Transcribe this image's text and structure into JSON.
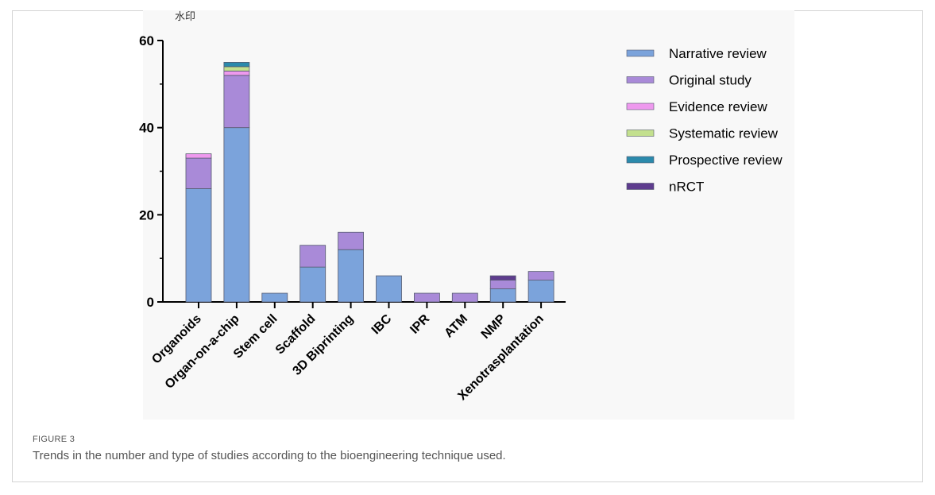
{
  "figure": {
    "label": "FIGURE 3",
    "caption": "Trends in the number and type of studies according to the bioengineering technique used.",
    "watermark": "水印"
  },
  "chart_data": {
    "type": "bar",
    "stacked": true,
    "categories": [
      "Organoids",
      "Organ-on-a-chip",
      "Stem cell",
      "Scaffold",
      "3D Biprinting",
      "IBC",
      "IPR",
      "ATM",
      "NMP",
      "Xenotrasplantation"
    ],
    "series": [
      {
        "name": "Narrative review",
        "color": "#7ba3db",
        "values": [
          26,
          40,
          2,
          8,
          12,
          6,
          0,
          0,
          3,
          5
        ]
      },
      {
        "name": "Original study",
        "color": "#a98ad8",
        "values": [
          7,
          12,
          0,
          5,
          4,
          0,
          2,
          2,
          2,
          2
        ]
      },
      {
        "name": "Evidence review",
        "color": "#ee99ee",
        "values": [
          1,
          1,
          0,
          0,
          0,
          0,
          0,
          0,
          0,
          0
        ]
      },
      {
        "name": "Systematic review",
        "color": "#c3e08e",
        "values": [
          0,
          1,
          0,
          0,
          0,
          0,
          0,
          0,
          0,
          0
        ]
      },
      {
        "name": "Prospective review",
        "color": "#2b8aac",
        "values": [
          0,
          1,
          0,
          0,
          0,
          0,
          0,
          0,
          0,
          0
        ]
      },
      {
        "name": "nRCT",
        "color": "#5e3c8e",
        "values": [
          0,
          0,
          0,
          0,
          0,
          0,
          0,
          0,
          1,
          0
        ]
      }
    ],
    "yticks": [
      0,
      20,
      40,
      60
    ],
    "ylim": [
      0,
      60
    ],
    "xlabel": "",
    "ylabel": "",
    "grid": false,
    "legend_position": "right"
  }
}
